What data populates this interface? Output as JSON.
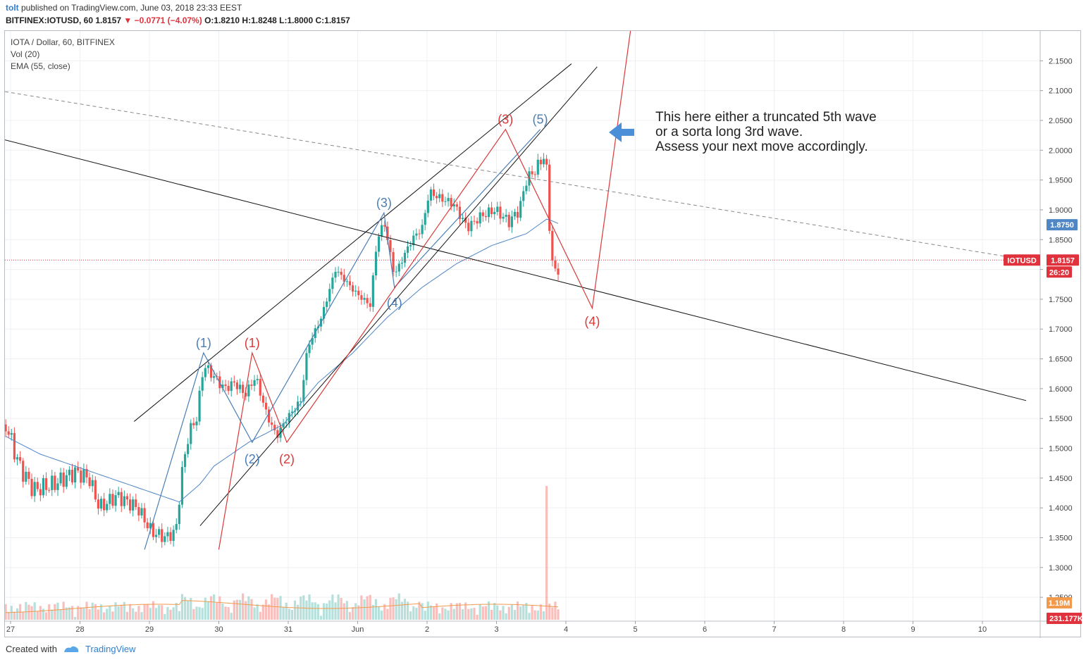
{
  "header": {
    "user": "tolt",
    "published": "published on TradingView.com, June 03, 2018 23:33 EEST",
    "symbol": "BITFINEX:IOTUSD, 60",
    "last": "1.8157",
    "change": "−0.0771 (−4.07%)",
    "ohlc": "O:1.8210 H:1.8248 L:1.8000 C:1.8157"
  },
  "legend": {
    "title": "IOTA / Dollar, 60, BITFINEX",
    "vol": "Vol (20)",
    "ema": "EMA (55, close)"
  },
  "footer": {
    "created": "Created with",
    "brand": "TradingView"
  },
  "annotation": {
    "line1": "This here either a truncated 5th wave",
    "line2": "or a sorta long 3rd wave.",
    "line3": "Assess your next move accordingly."
  },
  "colors": {
    "up": "#26a69a",
    "down": "#ef5350",
    "ema": "#4f86c6",
    "wave_blue": "#4a7fb5",
    "wave_red": "#d93a3a",
    "arrow": "#4a8fd8"
  },
  "badges": {
    "ema_value": "1.8750",
    "symbol_tag": "IOTUSD",
    "price_value": "1.8157",
    "countdown": "26:20",
    "vol_ma": "1.19M",
    "volume": "231.177K"
  },
  "chart_data": {
    "type": "candlestick",
    "ylim": [
      1.21,
      2.2
    ],
    "yticks": [
      "2.1500",
      "2.1000",
      "2.0500",
      "2.0000",
      "1.9500",
      "1.9000",
      "1.8500",
      "1.8000",
      "1.7500",
      "1.7000",
      "1.6500",
      "1.6000",
      "1.5500",
      "1.5000",
      "1.4500",
      "1.4000",
      "1.3500",
      "1.3000",
      "1.2500"
    ],
    "xticks": [
      {
        "label": "27",
        "t": -0.93
      },
      {
        "label": "28",
        "t": 0.07
      },
      {
        "label": "29",
        "t": 1.07
      },
      {
        "label": "30",
        "t": 2.07
      },
      {
        "label": "31",
        "t": 3.07
      },
      {
        "label": "Jun",
        "t": 4.07
      },
      {
        "label": "2",
        "t": 5.07
      },
      {
        "label": "3",
        "t": 6.07
      },
      {
        "label": "4",
        "t": 7.07
      },
      {
        "label": "5",
        "t": 8.07
      },
      {
        "label": "6",
        "t": 9.07
      },
      {
        "label": "7",
        "t": 10.07
      },
      {
        "label": "8",
        "t": 11.07
      },
      {
        "label": "9",
        "t": 12.07
      },
      {
        "label": "10",
        "t": 13.07
      }
    ],
    "price_knots": [
      {
        "t": -1.0,
        "p": 1.54
      },
      {
        "t": -0.8,
        "p": 1.47
      },
      {
        "t": -0.6,
        "p": 1.43
      },
      {
        "t": -0.3,
        "p": 1.44
      },
      {
        "t": 0.0,
        "p": 1.46
      },
      {
        "t": 0.2,
        "p": 1.45
      },
      {
        "t": 0.35,
        "p": 1.4
      },
      {
        "t": 0.6,
        "p": 1.42
      },
      {
        "t": 0.9,
        "p": 1.4
      },
      {
        "t": 1.1,
        "p": 1.36
      },
      {
        "t": 1.3,
        "p": 1.35
      },
      {
        "t": 1.45,
        "p": 1.36
      },
      {
        "t": 1.55,
        "p": 1.47
      },
      {
        "t": 1.65,
        "p": 1.53
      },
      {
        "t": 1.75,
        "p": 1.55
      },
      {
        "t": 1.85,
        "p": 1.64
      },
      {
        "t": 2.0,
        "p": 1.62
      },
      {
        "t": 2.15,
        "p": 1.6
      },
      {
        "t": 2.3,
        "p": 1.61
      },
      {
        "t": 2.45,
        "p": 1.59
      },
      {
        "t": 2.6,
        "p": 1.62
      },
      {
        "t": 2.75,
        "p": 1.56
      },
      {
        "t": 2.9,
        "p": 1.52
      },
      {
        "t": 3.05,
        "p": 1.55
      },
      {
        "t": 3.25,
        "p": 1.58
      },
      {
        "t": 3.35,
        "p": 1.67
      },
      {
        "t": 3.55,
        "p": 1.72
      },
      {
        "t": 3.75,
        "p": 1.8
      },
      {
        "t": 3.9,
        "p": 1.78
      },
      {
        "t": 4.05,
        "p": 1.76
      },
      {
        "t": 4.25,
        "p": 1.74
      },
      {
        "t": 4.35,
        "p": 1.85
      },
      {
        "t": 4.45,
        "p": 1.88
      },
      {
        "t": 4.6,
        "p": 1.79
      },
      {
        "t": 4.85,
        "p": 1.85
      },
      {
        "t": 5.0,
        "p": 1.87
      },
      {
        "t": 5.1,
        "p": 1.93
      },
      {
        "t": 5.25,
        "p": 1.92
      },
      {
        "t": 5.45,
        "p": 1.91
      },
      {
        "t": 5.65,
        "p": 1.87
      },
      {
        "t": 5.85,
        "p": 1.89
      },
      {
        "t": 6.05,
        "p": 1.9
      },
      {
        "t": 6.25,
        "p": 1.88
      },
      {
        "t": 6.4,
        "p": 1.9
      },
      {
        "t": 6.5,
        "p": 1.95
      },
      {
        "t": 6.65,
        "p": 1.97
      },
      {
        "t": 6.75,
        "p": 1.99
      },
      {
        "t": 6.8,
        "p": 1.96
      },
      {
        "t": 6.85,
        "p": 1.83
      },
      {
        "t": 6.92,
        "p": 1.79
      },
      {
        "t": 7.0,
        "p": 1.8157
      }
    ],
    "ema_knots": [
      {
        "t": -1.0,
        "p": 1.52
      },
      {
        "t": -0.5,
        "p": 1.49
      },
      {
        "t": 0.0,
        "p": 1.47
      },
      {
        "t": 0.5,
        "p": 1.45
      },
      {
        "t": 1.0,
        "p": 1.43
      },
      {
        "t": 1.5,
        "p": 1.41
      },
      {
        "t": 1.8,
        "p": 1.44
      },
      {
        "t": 2.0,
        "p": 1.47
      },
      {
        "t": 2.5,
        "p": 1.51
      },
      {
        "t": 3.0,
        "p": 1.54
      },
      {
        "t": 3.5,
        "p": 1.61
      },
      {
        "t": 4.0,
        "p": 1.66
      },
      {
        "t": 4.5,
        "p": 1.72
      },
      {
        "t": 5.0,
        "p": 1.77
      },
      {
        "t": 5.5,
        "p": 1.81
      },
      {
        "t": 6.0,
        "p": 1.84
      },
      {
        "t": 6.5,
        "p": 1.86
      },
      {
        "t": 6.8,
        "p": 1.885
      },
      {
        "t": 7.0,
        "p": 1.875
      }
    ],
    "blue_waves": {
      "points": [
        {
          "t": 1.0,
          "p": 1.33
        },
        {
          "t": 1.85,
          "p": 1.66
        },
        {
          "t": 2.55,
          "p": 1.51
        },
        {
          "t": 4.45,
          "p": 1.895
        },
        {
          "t": 4.6,
          "p": 1.77
        },
        {
          "t": 6.7,
          "p": 2.035
        }
      ],
      "labels": [
        "(1)",
        "(2)",
        "(3)",
        "(4)",
        "(5)"
      ]
    },
    "red_waves": {
      "points": [
        {
          "t": 2.07,
          "p": 1.33
        },
        {
          "t": 2.55,
          "p": 1.66
        },
        {
          "t": 3.05,
          "p": 1.51
        },
        {
          "t": 6.2,
          "p": 2.035
        },
        {
          "t": 7.45,
          "p": 1.735
        },
        {
          "t": 8.0,
          "p": 2.2
        }
      ],
      "labels": [
        "(1)",
        "(2)",
        "(3)",
        "(4)"
      ]
    },
    "trendlines": [
      {
        "t1": -1.1,
        "p1": 2.02,
        "t2": 13.7,
        "p2": 1.58,
        "style": "solid"
      },
      {
        "t1": -1.1,
        "p1": 2.1,
        "t2": 13.5,
        "p2": 1.82,
        "style": "dashed"
      },
      {
        "t1": 0.85,
        "p1": 1.545,
        "t2": 7.15,
        "p2": 2.145
      },
      {
        "t1": 1.8,
        "p1": 1.37,
        "t2": 7.52,
        "p2": 2.14
      }
    ],
    "volume_spike": {
      "t": 6.8,
      "ratio": 1.0
    }
  }
}
